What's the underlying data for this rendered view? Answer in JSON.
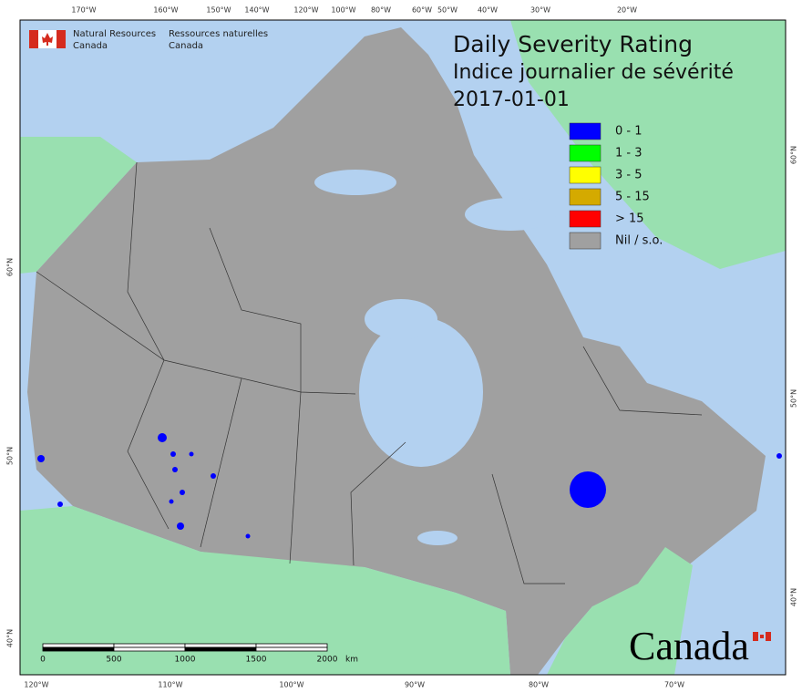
{
  "header": {
    "logo": {
      "english": [
        "Natural Resources",
        "Canada"
      ],
      "french": [
        "Ressources naturelles",
        "Canada"
      ]
    },
    "title": "Daily Severity Rating",
    "subtitle": "Indice journalier de sévérité",
    "date": "2017-01-01"
  },
  "legend": [
    {
      "name": "0 - 1",
      "color": "#0000ff"
    },
    {
      "name": "1 - 3",
      "color": "#00ff00"
    },
    {
      "name": "3 - 5",
      "color": "#ffff00"
    },
    {
      "name": "5 - 15",
      "color": "#d4aa00"
    },
    {
      "name": "> 15",
      "color": "#ff0000"
    },
    {
      "name": "Nil / s.o.",
      "color": "#a0a0a0"
    }
  ],
  "graticule": {
    "top": [
      "170°W",
      "160°W",
      "150°W",
      "140°W",
      "120°W",
      "100°W",
      "80°W",
      "60°W",
      "50°W",
      "40°W",
      "30°W",
      "20°W"
    ],
    "bottom": [
      "120°W",
      "110°W",
      "100°W",
      "90°W",
      "80°W",
      "70°W"
    ],
    "left": [
      "60°N",
      "50°N",
      "40°N"
    ],
    "right": [
      "60°N",
      "50°N",
      "40°N"
    ]
  },
  "scale_bar": {
    "labels": [
      0,
      500,
      1000,
      1500,
      2000
    ],
    "unit": "km"
  },
  "wordmark": "Canada"
}
